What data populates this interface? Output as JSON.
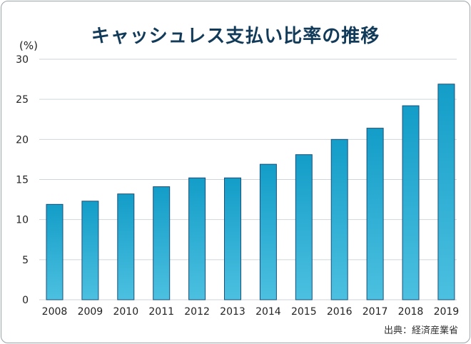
{
  "title": "キャッシュレス支払い比率の推移",
  "unit_label": "(%)",
  "source": "出典：経済産業省",
  "colors": {
    "bar_top": "#139dc8",
    "bar_bottom": "#4cc0e0",
    "bar_stroke": "#1c4f78",
    "grid": "#cfd6da",
    "title": "#123b5a"
  },
  "chart_data": {
    "type": "bar",
    "title": "キャッシュレス支払い比率の推移",
    "xlabel": "",
    "ylabel": "(%)",
    "ylim": [
      0,
      30
    ],
    "yticks": [
      0,
      5,
      10,
      15,
      20,
      25,
      30
    ],
    "grid": true,
    "categories": [
      "2008",
      "2009",
      "2010",
      "2011",
      "2012",
      "2013",
      "2014",
      "2015",
      "2016",
      "2017",
      "2018",
      "2019"
    ],
    "values": [
      11.9,
      12.3,
      13.2,
      14.1,
      15.2,
      15.2,
      16.9,
      18.1,
      20.0,
      21.4,
      24.2,
      26.9
    ]
  }
}
